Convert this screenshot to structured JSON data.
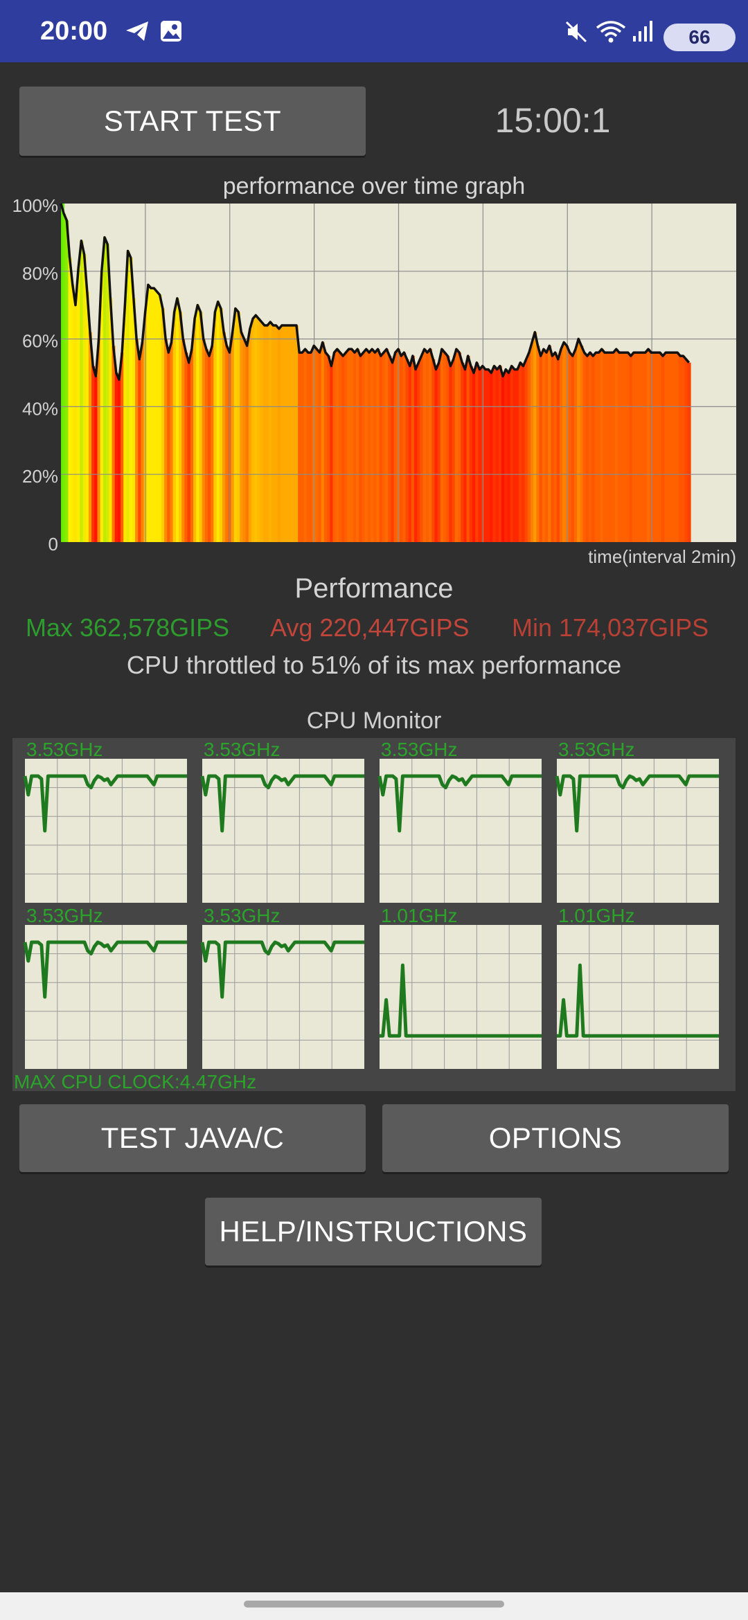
{
  "status_bar": {
    "time": "20:00",
    "left_icons": [
      "telegram-icon",
      "gallery-icon"
    ],
    "right_icons": [
      "mute-icon",
      "wifi-icon",
      "signal-icon"
    ],
    "battery": "66"
  },
  "controls": {
    "start_label": "START TEST",
    "timer": "15:00:1"
  },
  "performance_graph": {
    "title": "performance over time graph",
    "x_label": "time(interval 2min)"
  },
  "chart_data": {
    "type": "area",
    "title": "performance over time graph",
    "xlabel": "time(interval 2min)",
    "ylabel": "",
    "y_ticks": [
      "100%",
      "80%",
      "60%",
      "40%",
      "20%",
      "0"
    ],
    "ylim": [
      0,
      100
    ],
    "grid": true,
    "x_end_fraction": 0.93,
    "series": [
      {
        "values": [
          100,
          97,
          95,
          84,
          76,
          70,
          81,
          89,
          85,
          74,
          62,
          52,
          49,
          60,
          80,
          90,
          88,
          72,
          58,
          50,
          48,
          56,
          70,
          86,
          84,
          72,
          60,
          54,
          59,
          68,
          76,
          75,
          75,
          74,
          73,
          69,
          60,
          56,
          59,
          68,
          72,
          68,
          60,
          56,
          53,
          57,
          66,
          70,
          68,
          60,
          57,
          55,
          58,
          68,
          71,
          69,
          62,
          58,
          56,
          62,
          69,
          68,
          62,
          60,
          58,
          63,
          66,
          67,
          66,
          65,
          64,
          64,
          65,
          64,
          64,
          63,
          64,
          64,
          64,
          64,
          64,
          64,
          56,
          56,
          57,
          56,
          56,
          58,
          57,
          56,
          59,
          56,
          55,
          52,
          56,
          57,
          56,
          55,
          56,
          57,
          57,
          56,
          57,
          55,
          56,
          57,
          56,
          57,
          56,
          57,
          55,
          56,
          57,
          55,
          53,
          56,
          57,
          55,
          56,
          54,
          52,
          55,
          51,
          53,
          55,
          57,
          56,
          57,
          54,
          51,
          53,
          57,
          56,
          55,
          52,
          54,
          57,
          56,
          53,
          51,
          55,
          52,
          50,
          53,
          51,
          52,
          51,
          51,
          50,
          52,
          51,
          52,
          49,
          51,
          50,
          52,
          51,
          51,
          53,
          52,
          54,
          56,
          59,
          62,
          58,
          55,
          57,
          56,
          58,
          55,
          56,
          54,
          57,
          59,
          58,
          56,
          55,
          57,
          60,
          58,
          56,
          55,
          56,
          55,
          56,
          56,
          57,
          56,
          56,
          56,
          56,
          57,
          56,
          56,
          56,
          56,
          55,
          56,
          56,
          56,
          56,
          56,
          57,
          56,
          56,
          56,
          56,
          55,
          56,
          56,
          56,
          56,
          56,
          55,
          55,
          54,
          53
        ]
      }
    ],
    "cpu_monitor": {
      "title": "CPU Monitor",
      "cores": [
        {
          "label": "3.53GHz",
          "values": [
            88,
            75,
            88,
            88,
            88,
            86,
            50,
            88,
            88,
            88,
            88,
            88,
            88,
            88,
            88,
            88,
            88,
            88,
            88,
            82,
            80,
            85,
            88,
            87,
            85,
            86,
            82,
            85,
            88,
            88,
            88,
            88,
            88,
            88,
            88,
            88,
            88,
            88,
            85,
            82,
            88,
            88,
            88,
            88,
            88,
            88,
            88,
            88,
            88,
            88
          ]
        },
        {
          "label": "3.53GHz",
          "values": [
            88,
            75,
            88,
            88,
            88,
            86,
            50,
            88,
            88,
            88,
            88,
            88,
            88,
            88,
            88,
            88,
            88,
            88,
            88,
            82,
            80,
            85,
            88,
            87,
            85,
            86,
            82,
            85,
            88,
            88,
            88,
            88,
            88,
            88,
            88,
            88,
            88,
            88,
            85,
            82,
            88,
            88,
            88,
            88,
            88,
            88,
            88,
            88,
            88,
            88
          ]
        },
        {
          "label": "3.53GHz",
          "values": [
            88,
            75,
            88,
            88,
            88,
            86,
            50,
            88,
            88,
            88,
            88,
            88,
            88,
            88,
            88,
            88,
            88,
            88,
            88,
            82,
            80,
            85,
            88,
            87,
            85,
            86,
            82,
            85,
            88,
            88,
            88,
            88,
            88,
            88,
            88,
            88,
            88,
            88,
            85,
            82,
            88,
            88,
            88,
            88,
            88,
            88,
            88,
            88,
            88,
            88
          ]
        },
        {
          "label": "3.53GHz",
          "values": [
            88,
            75,
            88,
            88,
            88,
            86,
            50,
            88,
            88,
            88,
            88,
            88,
            88,
            88,
            88,
            88,
            88,
            88,
            88,
            82,
            80,
            85,
            88,
            87,
            85,
            86,
            82,
            85,
            88,
            88,
            88,
            88,
            88,
            88,
            88,
            88,
            88,
            88,
            85,
            82,
            88,
            88,
            88,
            88,
            88,
            88,
            88,
            88,
            88,
            88
          ]
        },
        {
          "label": "3.53GHz",
          "values": [
            88,
            75,
            88,
            88,
            88,
            86,
            50,
            88,
            88,
            88,
            88,
            88,
            88,
            88,
            88,
            88,
            88,
            88,
            88,
            82,
            80,
            85,
            88,
            87,
            85,
            86,
            82,
            85,
            88,
            88,
            88,
            88,
            88,
            88,
            88,
            88,
            88,
            88,
            85,
            82,
            88,
            88,
            88,
            88,
            88,
            88,
            88,
            88,
            88,
            88
          ]
        },
        {
          "label": "3.53GHz",
          "values": [
            88,
            75,
            88,
            88,
            88,
            86,
            50,
            88,
            88,
            88,
            88,
            88,
            88,
            88,
            88,
            88,
            88,
            88,
            88,
            82,
            80,
            85,
            88,
            87,
            85,
            86,
            82,
            85,
            88,
            88,
            88,
            88,
            88,
            88,
            88,
            88,
            88,
            88,
            85,
            82,
            88,
            88,
            88,
            88,
            88,
            88,
            88,
            88,
            88,
            88
          ]
        },
        {
          "label": "1.01GHz",
          "values": [
            23,
            23,
            48,
            23,
            23,
            23,
            23,
            72,
            23,
            23,
            23,
            23,
            23,
            23,
            23,
            23,
            23,
            23,
            23,
            23,
            23,
            23,
            23,
            23,
            23,
            23,
            23,
            23,
            23,
            23,
            23,
            23,
            23,
            23,
            23,
            23,
            23,
            23,
            23,
            23,
            23,
            23,
            23,
            23,
            23,
            23,
            23,
            23,
            23,
            23
          ]
        },
        {
          "label": "1.01GHz",
          "values": [
            23,
            23,
            48,
            23,
            23,
            23,
            23,
            72,
            23,
            23,
            23,
            23,
            23,
            23,
            23,
            23,
            23,
            23,
            23,
            23,
            23,
            23,
            23,
            23,
            23,
            23,
            23,
            23,
            23,
            23,
            23,
            23,
            23,
            23,
            23,
            23,
            23,
            23,
            23,
            23,
            23,
            23,
            23,
            23,
            23,
            23,
            23,
            23,
            23,
            23
          ]
        }
      ],
      "max_clock": "MAX CPU CLOCK:4.47GHz"
    }
  },
  "performance": {
    "heading": "Performance",
    "max": "Max 362,578GIPS",
    "avg": "Avg 220,447GIPS",
    "min": "Min 174,037GIPS",
    "throttle": "CPU throttled to 51% of its max performance",
    "max_color": "#2e9b2e",
    "avg_color": "#c0453a",
    "min_color": "#b84035"
  },
  "buttons": {
    "test_java_c": "TEST JAVA/C",
    "options": "OPTIONS",
    "help": "HELP/INSTRUCTIONS"
  }
}
